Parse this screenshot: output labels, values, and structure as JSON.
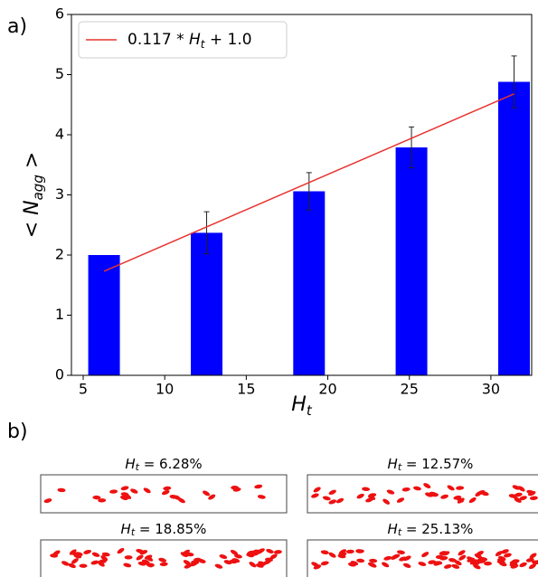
{
  "chart_data": {
    "type": "bar",
    "panel_label": "a)",
    "xlabel": {
      "text": "H",
      "sub": "t"
    },
    "ylabel": {
      "text": "< N",
      "sub": "agg",
      "end": " >"
    },
    "x": [
      6.28,
      12.57,
      18.85,
      25.13,
      31.42
    ],
    "values": [
      2.0,
      2.37,
      3.06,
      3.79,
      4.88
    ],
    "errors": [
      0,
      0.35,
      0.31,
      0.34,
      0.43
    ],
    "color": "#0000ff",
    "fit": {
      "type": "line",
      "color": "#e8332f",
      "x": [
        6.28,
        31.42
      ],
      "values": [
        1.73,
        4.68
      ],
      "label": [
        "0.117 * ",
        "H",
        "t",
        " + 1.0"
      ]
    },
    "xlim": [
      4.28,
      32.5
    ],
    "ylim": [
      0,
      6
    ],
    "xticks": [
      5,
      10,
      15,
      20,
      25,
      30
    ],
    "yticks": [
      0,
      1,
      2,
      3,
      4,
      5,
      6
    ],
    "legend": "upper left"
  },
  "snapshots": {
    "panel_label": "b)",
    "panels": [
      {
        "var": "H",
        "sub": "t",
        "text": " = 6.28%"
      },
      {
        "var": "H",
        "sub": "t",
        "text": " = 12.57%"
      },
      {
        "var": "H",
        "sub": "t",
        "text": " = 18.85%"
      },
      {
        "var": "H",
        "sub": "t",
        "text": " = 25.13%"
      }
    ]
  }
}
